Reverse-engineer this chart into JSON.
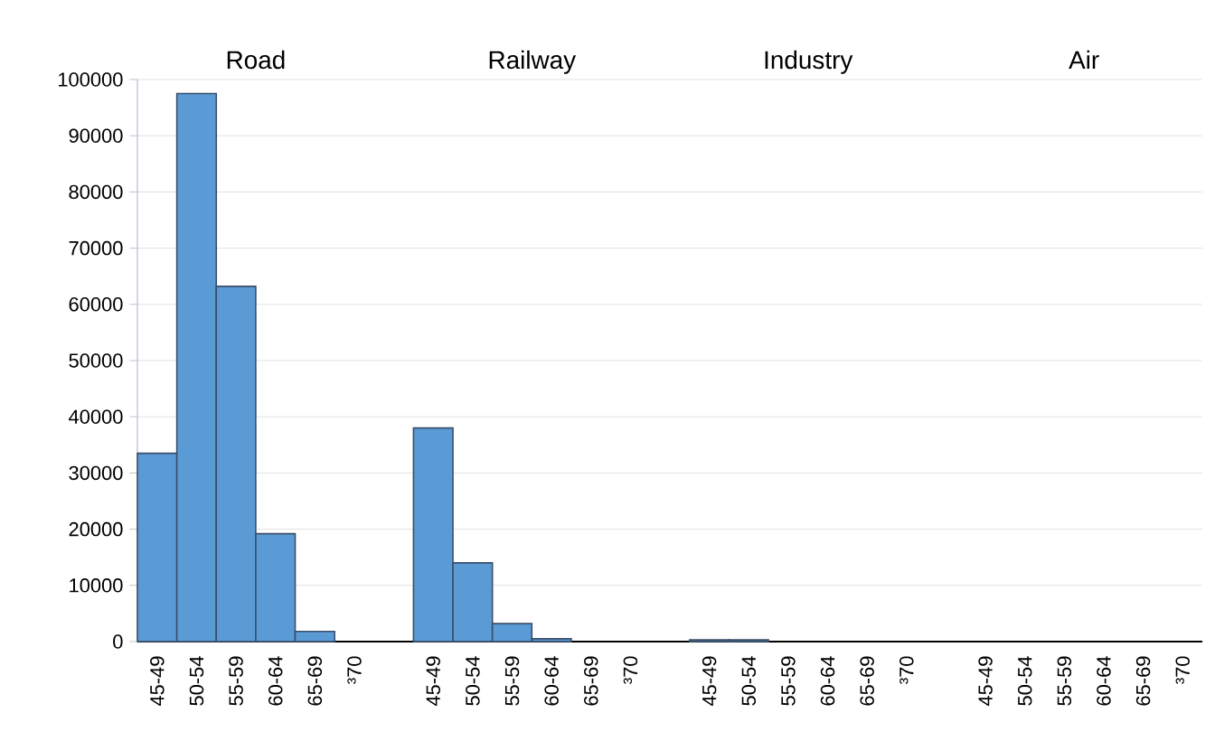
{
  "chart_data": {
    "type": "bar",
    "categories": [
      "45-49",
      "50-54",
      "55-59",
      "60-64",
      "65-69",
      "³70",
      null,
      "45-49",
      "50-54",
      "55-59",
      "60-64",
      "65-69",
      "³70",
      null,
      "45-49",
      "50-54",
      "55-59",
      "60-64",
      "65-69",
      "³70",
      null,
      "45-49",
      "50-54",
      "55-59",
      "60-64",
      "65-69",
      "³70"
    ],
    "values": [
      33500,
      97500,
      63200,
      19200,
      1800,
      0,
      null,
      38000,
      14000,
      3200,
      500,
      0,
      0,
      null,
      300,
      300,
      0,
      0,
      0,
      0,
      null,
      0,
      0,
      0,
      0,
      0,
      0
    ],
    "color": "#5b9bd5",
    "annotations": [
      "Road",
      "Railway",
      "Industry",
      "Air"
    ],
    "ylim": [
      0,
      100000
    ],
    "yticks": [
      0,
      10000,
      20000,
      30000,
      40000,
      50000,
      60000,
      70000,
      80000,
      90000,
      100000
    ],
    "grid": "y"
  }
}
